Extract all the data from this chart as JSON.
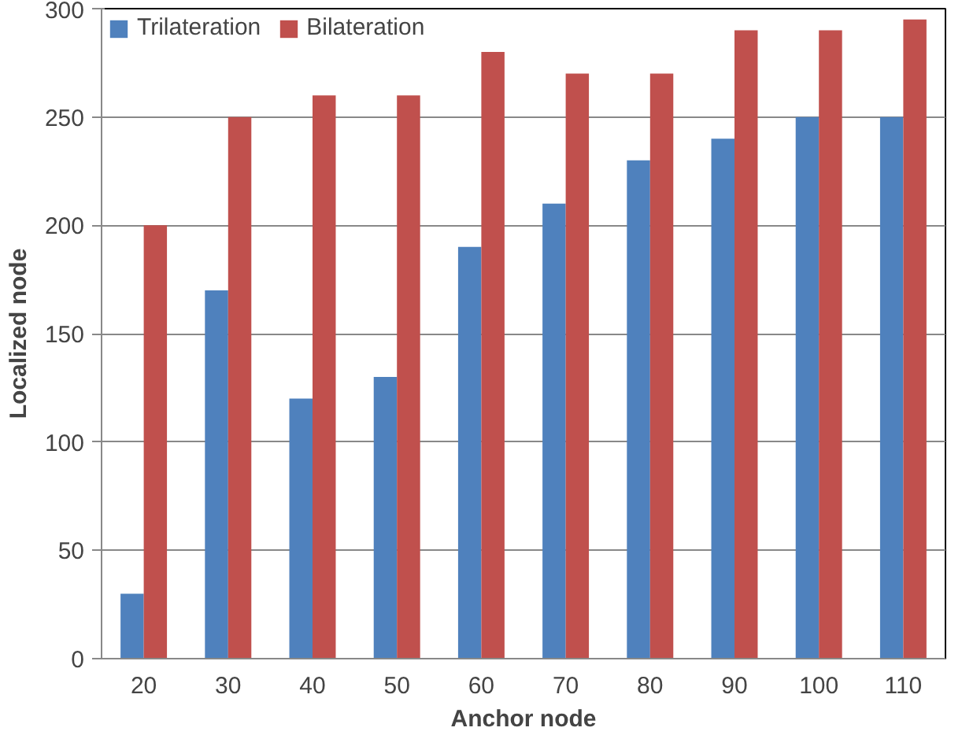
{
  "chart_data": {
    "type": "bar",
    "xlabel": "Anchor node",
    "ylabel": "Localized node",
    "categories": [
      "20",
      "30",
      "40",
      "50",
      "60",
      "70",
      "80",
      "90",
      "100",
      "110"
    ],
    "series": [
      {
        "name": "Trilateration",
        "color": "#4f81bd",
        "values": [
          30,
          170,
          120,
          130,
          190,
          210,
          230,
          240,
          250,
          250
        ]
      },
      {
        "name": "Bilateration",
        "color": "#c0504d",
        "values": [
          200,
          250,
          260,
          260,
          280,
          270,
          270,
          290,
          290,
          295
        ]
      }
    ],
    "ylim": [
      0,
      300
    ],
    "yticks": [
      0,
      50,
      100,
      150,
      200,
      250,
      300
    ],
    "grid": "y",
    "legend": "top left"
  }
}
